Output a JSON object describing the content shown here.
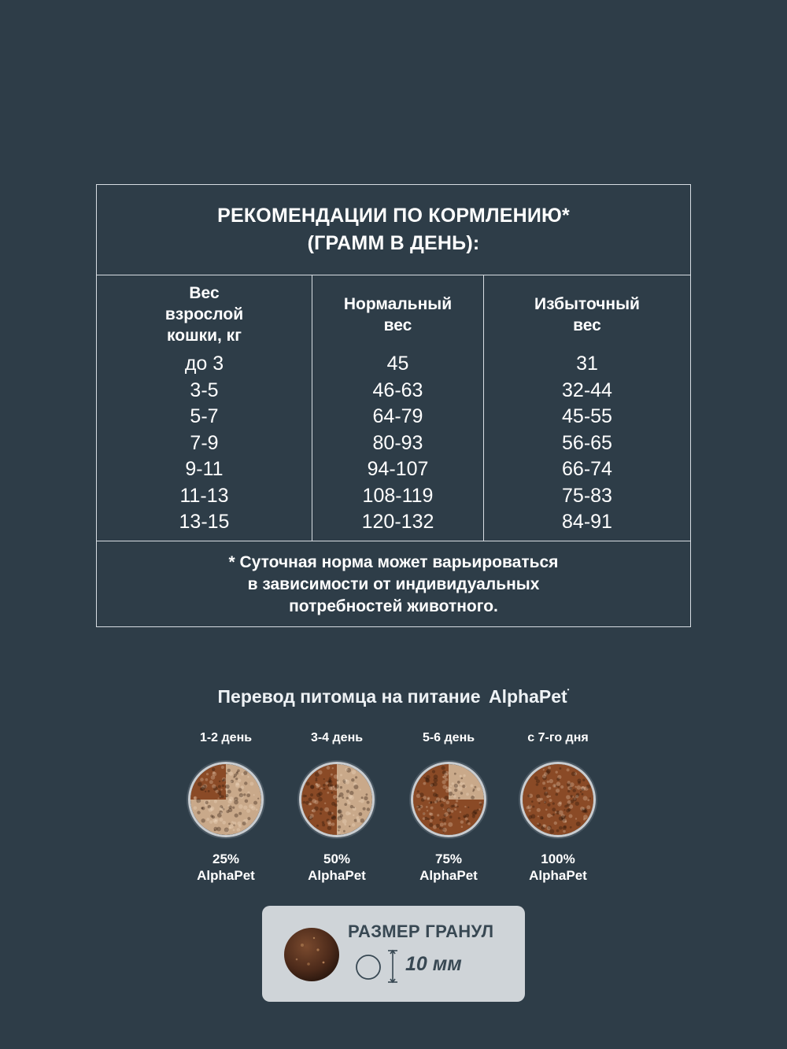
{
  "table": {
    "title_line1": "РЕКОМЕНДАЦИИ ПО КОРМЛЕНИЮ*",
    "title_line2": "(ГРАММ В ДЕНЬ):",
    "columns": [
      {
        "header": "Вес\nвзрослой\nкошки, кг",
        "values": [
          "до 3",
          "3-5",
          "5-7",
          "7-9",
          "9-11",
          "11-13",
          "13-15"
        ]
      },
      {
        "header": "Нормальный\nвес",
        "values": [
          "45",
          "46-63",
          "64-79",
          "80-93",
          "94-107",
          "108-119",
          "120-132"
        ]
      },
      {
        "header": "Избыточный\nвес",
        "values": [
          "31",
          "32-44",
          "45-55",
          "56-65",
          "66-74",
          "75-83",
          "84-91"
        ]
      }
    ],
    "footnote_line1": "* Суточная норма может варьироваться",
    "footnote_line2": "в зависимости от индивидуальных",
    "footnote_line3": "потребностей животного."
  },
  "transition": {
    "title": "Перевод питомца на питание",
    "brand": "AlphaPet",
    "stages": [
      {
        "day": "1-2 день",
        "percent": "25%",
        "brand": "AlphaPet",
        "fraction": 0.25
      },
      {
        "day": "3-4 день",
        "percent": "50%",
        "brand": "AlphaPet",
        "fraction": 0.5
      },
      {
        "day": "5-6 день",
        "percent": "75%",
        "brand": "AlphaPet",
        "fraction": 0.75
      },
      {
        "day": "с 7-го дня",
        "percent": "100%",
        "brand": "AlphaPet",
        "fraction": 1.0
      }
    ]
  },
  "granule": {
    "title": "РАЗМЕР ГРАНУЛ",
    "size": "10 мм"
  },
  "colors": {
    "background": "#2e3d48",
    "kibble_new": "#8a4a26",
    "kibble_old": "#c9a98a",
    "granule_box": "#cfd4d8"
  }
}
